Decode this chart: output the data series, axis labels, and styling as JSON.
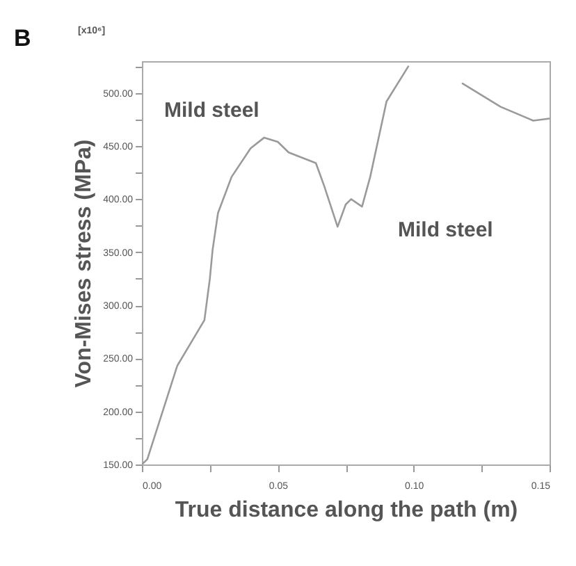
{
  "chart_data": {
    "type": "line",
    "xlabel": "True distance along the path (m)",
    "ylabel": "Von-Mises stress (MPa)",
    "annotations": [
      "B",
      "[x10⁶]",
      "Mild steel",
      "Mild steel"
    ],
    "x": [
      0.0,
      0.002,
      0.013,
      0.023,
      0.025,
      0.026,
      0.028,
      0.033,
      0.04,
      0.045,
      0.05,
      0.054,
      0.064,
      0.067,
      0.072,
      0.075,
      0.077,
      0.081,
      0.084,
      0.09,
      0.098,
      0.1,
      0.11,
      0.118,
      0.132,
      0.144,
      0.15
    ],
    "series": [
      {
        "color": "#9a9a9a",
        "values": [
          150,
          155,
          243,
          286,
          325,
          352,
          387,
          421,
          448,
          458,
          454,
          444,
          434,
          413,
          374,
          395,
          400,
          393,
          421,
          492,
          525,
          null,
          null,
          509,
          487,
          474,
          476
        ]
      }
    ],
    "xlim": [
      0,
      0.15
    ],
    "ylim": [
      150,
      530
    ],
    "xticks": [
      {
        "value": 0,
        "label": "0.00"
      },
      {
        "value": 0.025,
        "label": null
      },
      {
        "value": 0.05,
        "label": "0.05"
      },
      {
        "value": 0.075,
        "label": null
      },
      {
        "value": 0.1,
        "label": "0.10"
      },
      {
        "value": 0.125,
        "label": null
      },
      {
        "value": 0.15,
        "label": "0.15"
      }
    ],
    "yticks": [
      {
        "value": 150,
        "label": "150.00"
      },
      {
        "value": 175,
        "label": null
      },
      {
        "value": 200,
        "label": "200.00"
      },
      {
        "value": 225,
        "label": null
      },
      {
        "value": 250,
        "label": "250.00"
      },
      {
        "value": 275,
        "label": null
      },
      {
        "value": 300,
        "label": "300.00"
      },
      {
        "value": 325,
        "label": null
      },
      {
        "value": 350,
        "label": "350.00"
      },
      {
        "value": 375,
        "label": null
      },
      {
        "value": 400,
        "label": "400.00"
      },
      {
        "value": 425,
        "label": null
      },
      {
        "value": 450,
        "label": "450.00"
      },
      {
        "value": 475,
        "label": null
      },
      {
        "value": 500,
        "label": "500.00"
      },
      {
        "value": 525,
        "label": null
      }
    ],
    "grid": false,
    "marker": "none",
    "line_style": "solid"
  }
}
